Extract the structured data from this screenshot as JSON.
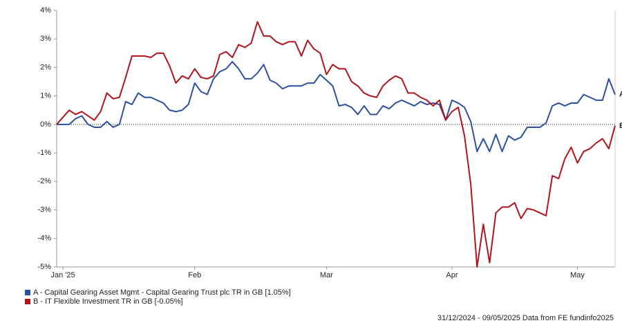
{
  "chart_data": {
    "type": "line",
    "categories": [
      null,
      "Jan '25",
      null,
      null,
      null,
      null,
      null,
      null,
      null,
      null,
      null,
      null,
      null,
      null,
      null,
      null,
      null,
      null,
      null,
      null,
      null,
      null,
      "Feb",
      null,
      null,
      null,
      null,
      null,
      null,
      null,
      null,
      null,
      null,
      null,
      null,
      null,
      null,
      null,
      null,
      null,
      null,
      null,
      null,
      "Mar",
      null,
      null,
      null,
      null,
      null,
      null,
      null,
      null,
      null,
      null,
      null,
      null,
      null,
      null,
      null,
      null,
      null,
      null,
      null,
      "Apr",
      null,
      null,
      null,
      null,
      null,
      null,
      null,
      null,
      null,
      null,
      null,
      null,
      null,
      null,
      null,
      null,
      null,
      null,
      null,
      "May",
      null,
      null,
      null,
      null,
      null,
      null
    ],
    "series": [
      {
        "name": "A - Capital Gearing Asset Mgmt - Capital Gearing Trust plc TR in GB [1.05%]",
        "end_label": "A",
        "color": "#2b50a0",
        "values": [
          0,
          0,
          0,
          0.2,
          0.3,
          0,
          -0.1,
          -0.1,
          0.1,
          -0.1,
          0,
          0.8,
          0.7,
          1.1,
          0.95,
          0.95,
          0.85,
          0.75,
          0.5,
          0.45,
          0.5,
          0.7,
          1.45,
          1.15,
          1.05,
          1.6,
          1.85,
          1.95,
          2.2,
          1.95,
          1.6,
          1.6,
          1.8,
          2.1,
          1.55,
          1.45,
          1.25,
          1.35,
          1.35,
          1.35,
          1.45,
          1.45,
          1.75,
          1.55,
          1.35,
          0.65,
          0.7,
          0.6,
          0.35,
          0.65,
          0.35,
          0.35,
          0.65,
          0.55,
          0.75,
          0.85,
          0.75,
          0.65,
          0.8,
          0.7,
          0.75,
          0.7,
          0.15,
          0.85,
          0.75,
          0.6,
          0.1,
          -0.95,
          -0.5,
          -0.95,
          -0.35,
          -0.95,
          -0.4,
          -0.55,
          -0.45,
          -0.1,
          -0.1,
          -0.1,
          0.05,
          0.65,
          0.75,
          0.65,
          0.75,
          0.75,
          1.05,
          0.95,
          0.85,
          0.85,
          1.6,
          1.05
        ]
      },
      {
        "name": "B - IT Flexible Investment TR in GB [-0.05%]",
        "end_label": "B",
        "color": "#b0141a",
        "values": [
          0,
          0.25,
          0.5,
          0.35,
          0.45,
          0.3,
          0.15,
          0.45,
          1.1,
          0.9,
          0.95,
          1.65,
          2.4,
          2.4,
          2.4,
          2.35,
          2.5,
          2.5,
          2.05,
          1.45,
          1.7,
          1.6,
          1.95,
          1.65,
          1.6,
          1.7,
          2.45,
          2.55,
          2.35,
          2.8,
          2.7,
          2.85,
          3.6,
          3.1,
          3.1,
          2.9,
          2.8,
          2.9,
          2.9,
          2.4,
          2.95,
          2.65,
          2.5,
          1.75,
          2.1,
          1.95,
          1.95,
          1.5,
          1.35,
          1.1,
          1.0,
          0.95,
          1.35,
          1.55,
          1.7,
          1.6,
          1.1,
          1.1,
          0.95,
          0.85,
          0.65,
          0.85,
          0.15,
          0.45,
          0.6,
          -0.4,
          -2.1,
          -5.0,
          -3.5,
          -4.85,
          -3.1,
          -2.9,
          -2.9,
          -2.75,
          -3.3,
          -2.95,
          -3.0,
          -3.1,
          -3.2,
          -1.8,
          -1.9,
          -1.2,
          -0.8,
          -1.35,
          -0.95,
          -0.85,
          -0.65,
          -0.5,
          -0.85,
          -0.05
        ]
      }
    ],
    "ylim": [
      -5,
      4
    ],
    "yticks": [
      {
        "value": 4,
        "label": "4%"
      },
      {
        "value": 3,
        "label": "3%"
      },
      {
        "value": 2,
        "label": "2%"
      },
      {
        "value": 1,
        "label": "1%"
      },
      {
        "value": 0,
        "label": "0%"
      },
      {
        "value": -1,
        "label": "-1%"
      },
      {
        "value": -2,
        "label": "-2%"
      },
      {
        "value": -3,
        "label": "-3%"
      },
      {
        "value": -4,
        "label": "-4%"
      },
      {
        "value": -5,
        "label": "-5%"
      }
    ],
    "footer": "31/12/2024 - 09/05/2025 Data from FE fundinfo2025"
  }
}
